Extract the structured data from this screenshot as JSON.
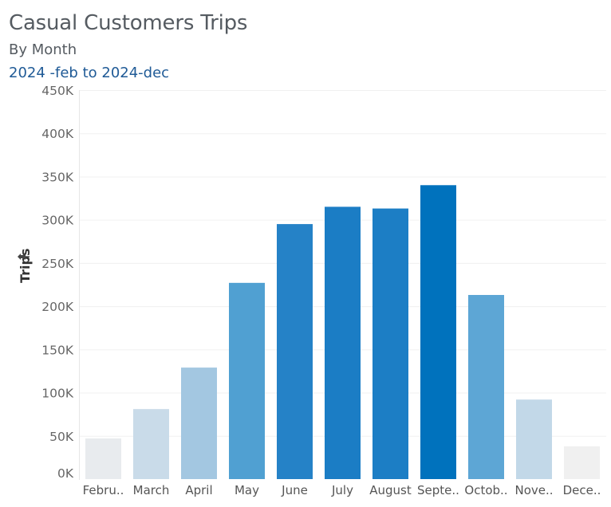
{
  "header": {
    "title": "Casual Customers Trips",
    "subtitle": "By Month",
    "range": "2024 -feb to 2024-dec"
  },
  "colors": {
    "title": "#555b61",
    "range": "#1f5a96",
    "bar_scale": [
      "#e8ebee",
      "#c9dbe9",
      "#a3c7e1",
      "#50a0d2",
      "#1e80c6",
      "#0072bd"
    ]
  },
  "chart_data": {
    "type": "bar",
    "ylabel": "Trips",
    "ylim": [
      0,
      450000
    ],
    "yticks": [
      0,
      50000,
      100000,
      150000,
      200000,
      250000,
      300000,
      350000,
      400000,
      450000
    ],
    "ytick_labels": [
      "0K",
      "50K",
      "100K",
      "150K",
      "200K",
      "250K",
      "300K",
      "350K",
      "400K",
      "450K"
    ],
    "categories": [
      "Febru..",
      "March",
      "April",
      "May",
      "June",
      "July",
      "August",
      "Septe..",
      "Octob..",
      "Nove..",
      "Dece.."
    ],
    "values": [
      47000,
      81000,
      129000,
      227000,
      295000,
      315000,
      313000,
      340000,
      213000,
      92000,
      38000
    ],
    "bar_colors": [
      "#e8ebee",
      "#c9dbe9",
      "#a3c7e1",
      "#50a0d2",
      "#2582c7",
      "#1b7dc5",
      "#1c7ec5",
      "#0072bd",
      "#5da6d5",
      "#c2d8e8",
      "#f0f0f0"
    ],
    "grid": true,
    "legend": "none"
  }
}
